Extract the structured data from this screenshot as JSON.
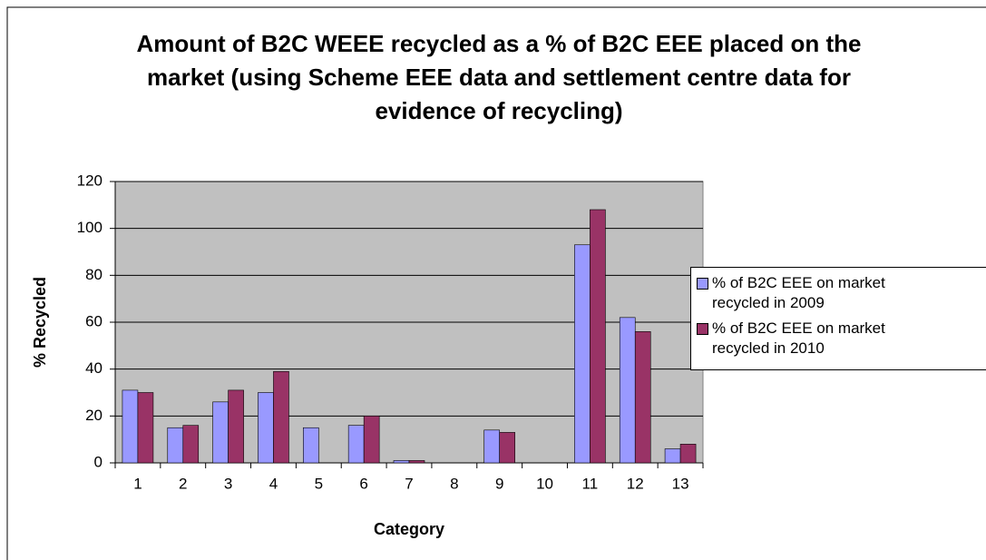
{
  "chart_data": {
    "type": "bar",
    "title": "Amount of B2C WEEE recycled as a % of B2C EEE placed on the market (using Scheme EEE data and settlement centre data for evidence of recycling)",
    "x_label": "Category",
    "y_label": "% Recycled",
    "categories": [
      "1",
      "2",
      "3",
      "4",
      "5",
      "6",
      "7",
      "8",
      "9",
      "10",
      "11",
      "12",
      "13"
    ],
    "series": [
      {
        "name": "% of B2C EEE on market recycled in 2009",
        "color": "#9999ff",
        "values": [
          31,
          15,
          26,
          30,
          15,
          16,
          1,
          0,
          14,
          0,
          93,
          62,
          6
        ]
      },
      {
        "name": "% of B2C EEE on market recycled in 2010",
        "color": "#993366",
        "values": [
          30,
          16,
          31,
          39,
          0,
          20,
          1,
          0,
          13,
          0,
          108,
          56,
          8
        ]
      }
    ],
    "ylim": [
      0,
      120
    ],
    "yticks": [
      0,
      20,
      40,
      60,
      80,
      100,
      120
    ],
    "grid": true,
    "legend": "right"
  }
}
